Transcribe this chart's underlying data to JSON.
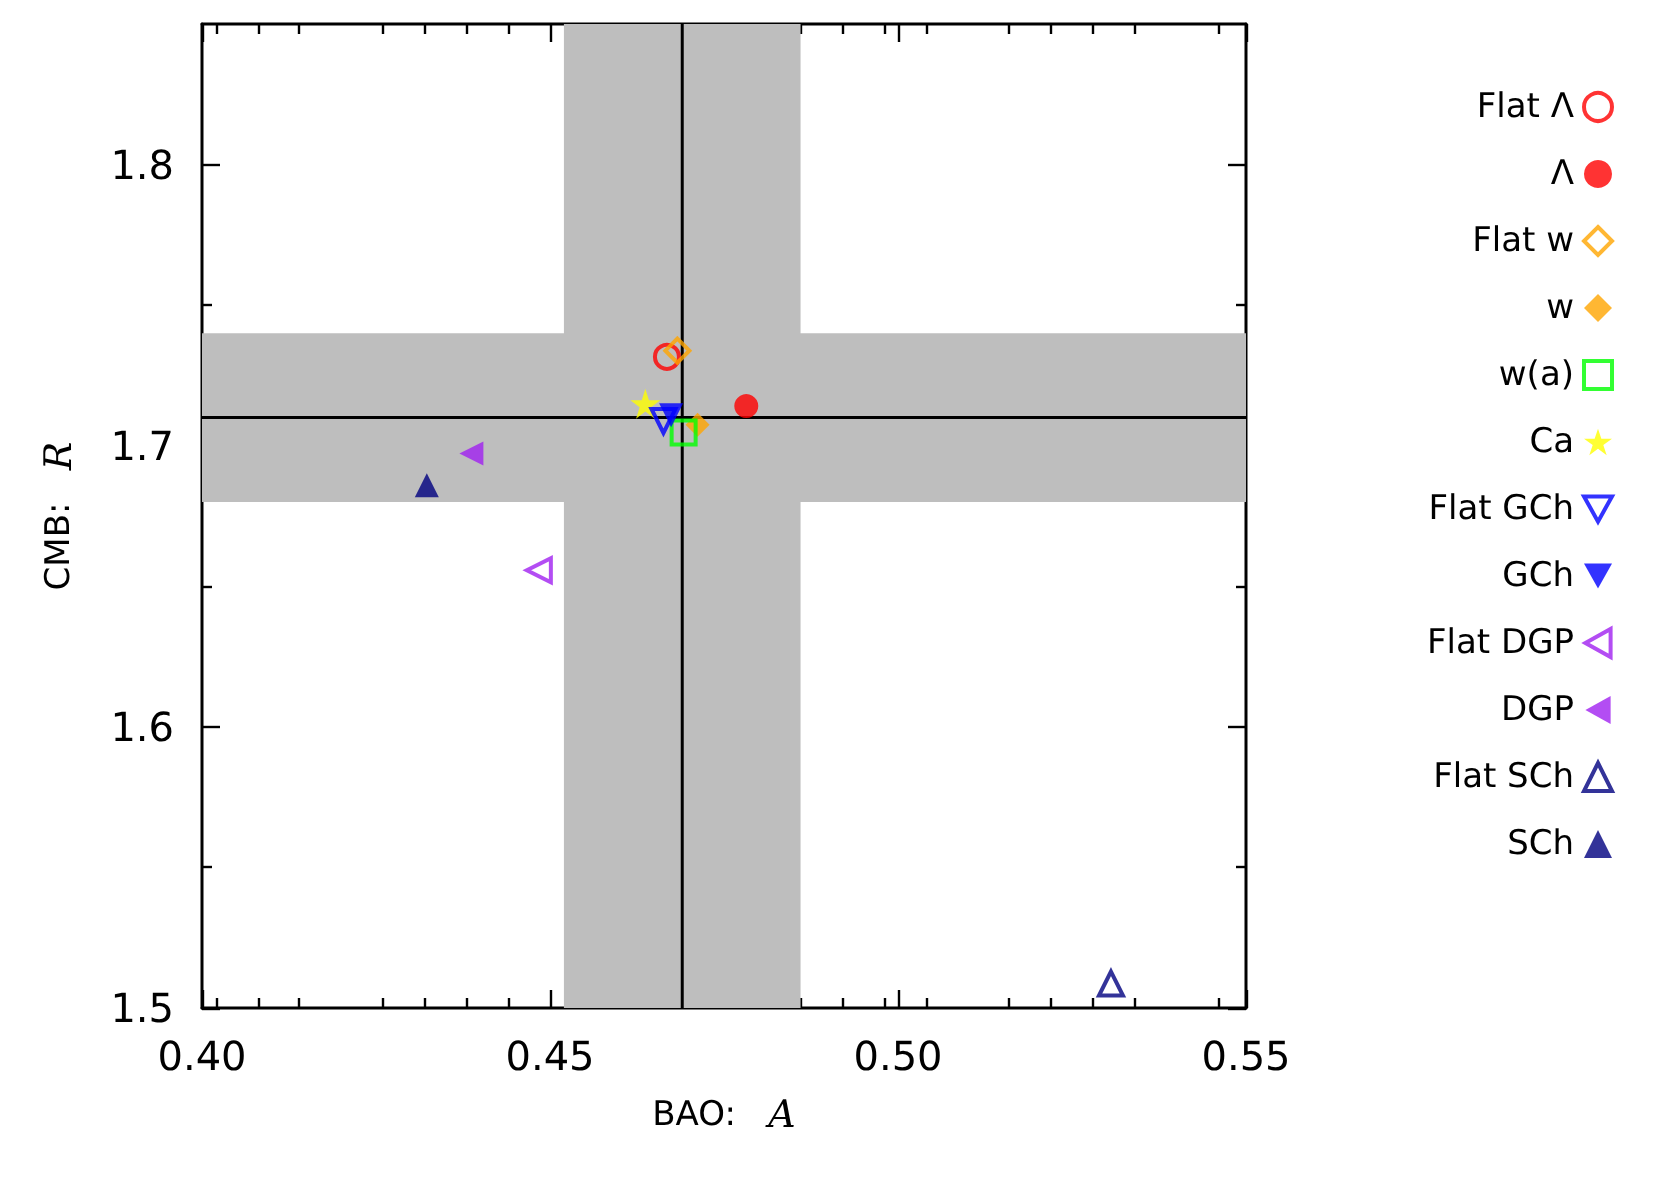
{
  "chart_data": {
    "type": "scatter",
    "xlabel": "BAO:   A",
    "ylabel": "CMB:   R",
    "xlim": [
      0.4,
      0.55
    ],
    "xticks": [
      {
        "value": 0.4,
        "label": "0.40"
      },
      {
        "value": 0.45,
        "label": "0.45"
      },
      {
        "value": 0.5,
        "label": "0.50"
      },
      {
        "value": 0.55,
        "label": "0.55"
      }
    ],
    "ylim": [
      1.5,
      1.85
    ],
    "yticks": [
      {
        "value": 1.5,
        "label": "1.5"
      },
      {
        "value": 1.6,
        "label": "1.6"
      },
      {
        "value": 1.7,
        "label": "1.7"
      },
      {
        "value": 1.8,
        "label": "1.8"
      }
    ],
    "grid": false,
    "legend": "right",
    "ref_lines": [
      {
        "axis": "x",
        "value": 0.469,
        "color": "#000000"
      },
      {
        "axis": "y",
        "value": 1.71,
        "color": "#000000"
      }
    ],
    "bands": [
      {
        "axis": "x",
        "from": 0.452,
        "to": 0.486,
        "color": "#bebebe"
      },
      {
        "axis": "y",
        "from": 1.68,
        "to": 1.74,
        "color": "#bebebe"
      }
    ],
    "series": [
      {
        "name": "Flat Λ",
        "color": "#ff0000",
        "marker": "circle-open",
        "x": [
          0.4668
        ],
        "values": [
          1.7316
        ]
      },
      {
        "name": "Λ",
        "color": "#ff0000",
        "marker": "circle",
        "x": [
          0.4782
        ],
        "values": [
          1.7141
        ]
      },
      {
        "name": "Flat w",
        "color": "#ffa500",
        "marker": "diamond-open",
        "x": [
          0.4683
        ],
        "values": [
          1.7338
        ]
      },
      {
        "name": "w",
        "color": "#ffa500",
        "marker": "diamond",
        "x": [
          0.4712
        ],
        "values": [
          1.7075
        ]
      },
      {
        "name": "w(a)",
        "color": "#00ff00",
        "marker": "square-open",
        "x": [
          0.4692
        ],
        "values": [
          1.7047
        ]
      },
      {
        "name": "Ca",
        "color": "#ffff00",
        "marker": "star",
        "x": [
          0.4637
        ],
        "values": [
          1.7149
        ]
      },
      {
        "name": "Flat GCh",
        "color": "#0000ff",
        "marker": "triangle-down-open",
        "x": [
          0.4663
        ],
        "values": [
          1.7088
        ]
      },
      {
        "name": "GCh",
        "color": "#0000ff",
        "marker": "triangle-down",
        "x": [
          0.4674
        ],
        "values": [
          1.7108
        ]
      },
      {
        "name": "Flat DGP",
        "color": "#a020f0",
        "marker": "triangle-left-open",
        "x": [
          0.4484
        ],
        "values": [
          1.6557
        ]
      },
      {
        "name": "DGP",
        "color": "#a020f0",
        "marker": "triangle-left",
        "x": [
          0.4387
        ],
        "values": [
          1.6972
        ]
      },
      {
        "name": "Flat SCh",
        "color": "#000080",
        "marker": "triangle-open",
        "x": [
          0.5306
        ],
        "values": [
          1.5087
        ]
      },
      {
        "name": "SCh",
        "color": "#000080",
        "marker": "triangle",
        "x": [
          0.4323
        ],
        "values": [
          1.6859
        ]
      }
    ]
  }
}
